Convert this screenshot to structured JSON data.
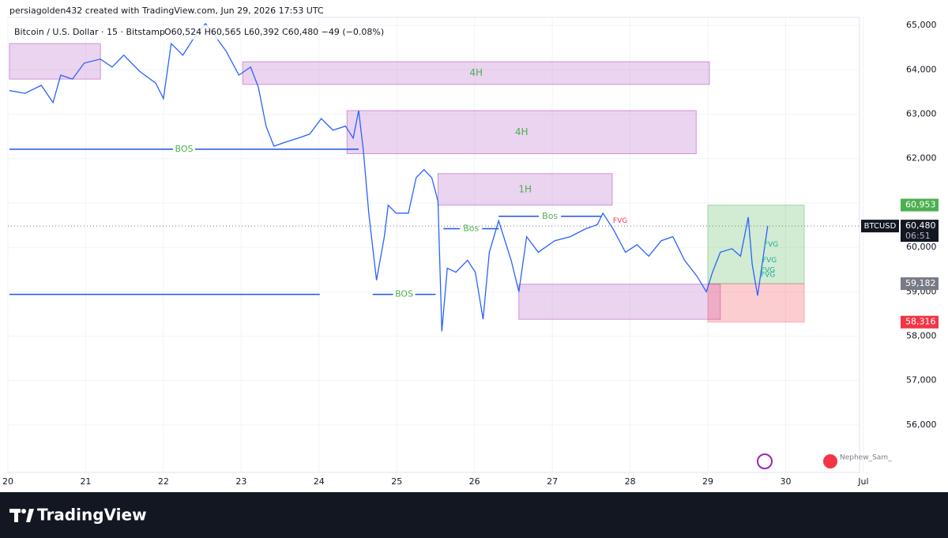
{
  "header": {
    "credit": "persiagolden432 created with TradingView.com, Jun 29, 2026 17:53 UTC",
    "symbol": "Bitcoin / U.S. Dollar · 15 · Bitstamp",
    "ohlc": "O60,524 H60,565 L60,392 C60,480 −49 (−0.08%)"
  },
  "footer": {
    "brand": "TradingView",
    "watermark": "Nephew_Sam_"
  },
  "chart_data": {
    "type": "line",
    "x": [
      20.02,
      20.22,
      20.43,
      20.58,
      20.68,
      20.83,
      20.98,
      21.19,
      21.34,
      21.49,
      21.69,
      21.9,
      22.0,
      22.1,
      22.25,
      22.41,
      22.54,
      22.66,
      22.81,
      22.97,
      23.12,
      23.22,
      23.32,
      23.42,
      23.57,
      23.73,
      23.88,
      24.03,
      24.18,
      24.34,
      24.44,
      24.51,
      24.57,
      24.64,
      24.74,
      24.84,
      24.89,
      24.99,
      25.15,
      25.25,
      25.35,
      25.45,
      25.53,
      25.58,
      25.65,
      25.76,
      25.91,
      26.01,
      26.11,
      26.19,
      26.31,
      26.47,
      26.57,
      26.67,
      26.82,
      27.03,
      27.23,
      27.43,
      27.58,
      27.65,
      27.78,
      27.94,
      28.09,
      28.24,
      28.4,
      28.55,
      28.7,
      28.86,
      28.98,
      29.06,
      29.16,
      29.31,
      29.42,
      29.52,
      29.57,
      29.64,
      29.72,
      29.77
    ],
    "series": [
      {
        "name": "BTCUSD",
        "color": "#2962ff",
        "values": [
          63530,
          63470,
          63650,
          63260,
          63880,
          63790,
          64150,
          64240,
          64060,
          64330,
          63970,
          63700,
          63350,
          64590,
          64330,
          64770,
          65040,
          64770,
          64410,
          63880,
          64060,
          63610,
          62730,
          62280,
          62370,
          62460,
          62550,
          62900,
          62640,
          62730,
          62460,
          63080,
          62190,
          60770,
          59260,
          60240,
          60950,
          60770,
          60770,
          61570,
          61750,
          61570,
          61040,
          58110,
          59530,
          59440,
          59710,
          59440,
          58380,
          59890,
          60600,
          59710,
          59000,
          60240,
          59890,
          60150,
          60240,
          60420,
          60510,
          60770,
          60420,
          59890,
          60060,
          59800,
          60150,
          60240,
          59710,
          59350,
          59000,
          59440,
          59890,
          59970,
          59800,
          60680,
          59620,
          58910,
          59890,
          60480
        ]
      }
    ],
    "xlim": [
      20,
      30.95
    ],
    "ylim": [
      54930,
      65180
    ],
    "xticks": [
      20,
      21,
      22,
      23,
      24,
      25,
      26,
      27,
      28,
      29,
      30,
      {
        "value": 31,
        "label": "Jul"
      }
    ],
    "yticks": [
      {
        "value": 65000,
        "label": "65,000"
      },
      {
        "value": 64000,
        "label": "64,000"
      },
      {
        "value": 63000,
        "label": "63,000"
      },
      {
        "value": 62000,
        "label": "62,000"
      },
      {
        "value": 61000,
        "label": "61,000"
      },
      {
        "value": 60000,
        "label": "60,000"
      },
      {
        "value": 59000,
        "label": "59,000"
      },
      {
        "value": 58000,
        "label": "58,000"
      },
      {
        "value": 57000,
        "label": "57,000"
      },
      {
        "value": 56000,
        "label": "56,000"
      }
    ],
    "zones": [
      {
        "x": [
          20.02,
          21.19
        ],
        "y": [
          64590,
          63790
        ]
      },
      {
        "label": "4H",
        "x": [
          23.02,
          29.02
        ],
        "y": [
          64180,
          63670
        ]
      },
      {
        "label": "4H",
        "x": [
          24.36,
          28.85
        ],
        "y": [
          63080,
          62110
        ]
      },
      {
        "label": "1H",
        "x": [
          25.53,
          27.77
        ],
        "y": [
          61660,
          60950
        ]
      },
      {
        "x": [
          26.57,
          29.16
        ],
        "y": [
          59170,
          58380
        ]
      }
    ],
    "levels": [
      {
        "label": "BOS",
        "y": 62210,
        "x": [
          20.02,
          24.51
        ]
      },
      {
        "y": 58940,
        "x": [
          20.02,
          24.01
        ]
      },
      {
        "label": "BOS",
        "y": 58940,
        "x": [
          24.69,
          25.5
        ]
      },
      {
        "label": "Bos",
        "y": 60420,
        "x": [
          25.6,
          26.31
        ]
      },
      {
        "label": "Bos",
        "y": 60700,
        "x": [
          26.31,
          27.63
        ]
      }
    ],
    "fvg": [
      {
        "label": "FVG",
        "x": 27.78,
        "y": 60600,
        "color": "#f23645"
      },
      {
        "label": "FVG",
        "x": 29.72,
        "y": 60060,
        "color": "#22ab94"
      },
      {
        "label": "FVG",
        "x": 29.7,
        "y": 59710,
        "color": "#22ab94"
      },
      {
        "label": "FVG",
        "x": 29.68,
        "y": 59490,
        "color": "#22ab94"
      },
      {
        "label": "FVG",
        "x": 29.68,
        "y": 59380,
        "color": "#22ab94"
      }
    ],
    "position": {
      "x": [
        29.0,
        30.24
      ],
      "target": 60953,
      "entry": 59182,
      "stop": 58316
    },
    "price_badges": [
      {
        "value": 60953,
        "label": "60,953",
        "color": "#4caf50"
      },
      {
        "value": 59182,
        "label": "59,182",
        "color": "#787b86"
      },
      {
        "value": 58316,
        "label": "58,316",
        "color": "#f23645"
      }
    ],
    "last_price": {
      "value": 60480,
      "label": "60,480",
      "countdown": "06:51"
    }
  }
}
